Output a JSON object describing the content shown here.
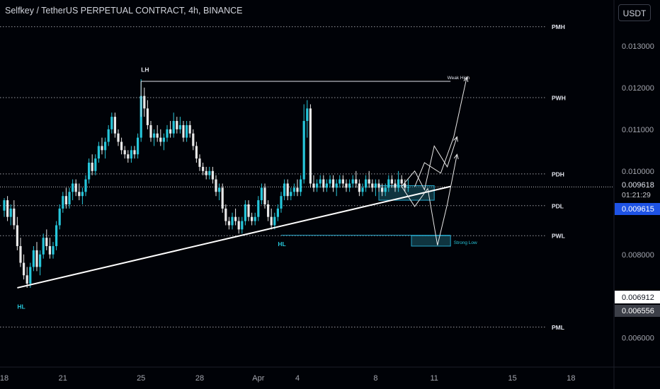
{
  "header": {
    "symbol_title": "Selfkey / TetherUS PERPETUAL CONTRACT, 4h, BINANCE",
    "currency_button": "USDT"
  },
  "colors": {
    "background": "#000207",
    "candle_up": "#26c6da",
    "candle_down": "#e8e8e8",
    "trendline": "#ffffff",
    "grid_text": "#a3a6af",
    "label_box_blue": "#1e53e5",
    "zone_fill": "#1b5e6e",
    "zone_border": "#26a6c9"
  },
  "chart_data": {
    "type": "candlestick",
    "y_axis": {
      "tick_labels": [
        "0.013000",
        "0.012000",
        "0.011000",
        "0.010000",
        "0.008000",
        "0.006000"
      ],
      "tick_values": [
        0.013,
        0.012,
        0.011,
        0.01,
        0.008,
        0.006
      ],
      "ylim": [
        0.0053,
        0.0141
      ],
      "position": "right"
    },
    "x_axis": {
      "tick_labels": [
        "18",
        "21",
        "25",
        "28",
        "Apr",
        "4",
        "8",
        "11",
        "15",
        "18"
      ],
      "tick_index": [
        0,
        18,
        42,
        60,
        78,
        90,
        114,
        132,
        156,
        174
      ]
    },
    "price_labels": {
      "last_price": "0.009618",
      "countdown": "01:21:29",
      "bid_price": "0.009615",
      "low_price": "0.006912",
      "lower_price": "0.006556"
    },
    "levels": [
      {
        "label": "PMH",
        "value": 0.01346
      },
      {
        "label": "PWH",
        "value": 0.01176
      },
      {
        "label": "PDH",
        "value": 0.00993
      },
      {
        "label": "PDL",
        "value": 0.00917
      },
      {
        "label": "PWL",
        "value": 0.00845
      },
      {
        "label": "PML",
        "value": 0.00626
      }
    ],
    "annotations": [
      {
        "text": "LH",
        "x": 42,
        "y": 0.01238
      },
      {
        "text": "Weak High",
        "x": 136,
        "y": 0.0122
      },
      {
        "text": "HL",
        "x": 4,
        "y": 0.0067
      },
      {
        "text": "HL",
        "x": 84,
        "y": 0.0082
      },
      {
        "text": "Strong Low",
        "x": 138,
        "y": 0.00825
      }
    ],
    "trendline": {
      "x": [
        4,
        137
      ],
      "y": [
        0.0072,
        0.00963
      ]
    },
    "high_line": {
      "x": [
        42,
        137
      ],
      "y": [
        0.01215,
        0.01215
      ]
    },
    "low_line": {
      "x": [
        85,
        137
      ],
      "y": [
        0.00846,
        0.00846
      ]
    },
    "zones": [
      {
        "x": [
          115,
          132
        ],
        "y": [
          0.0093,
          0.00965
        ]
      },
      {
        "x": [
          125,
          137
        ],
        "y": [
          0.0082,
          0.00845
        ]
      }
    ],
    "projections": [
      {
        "x": [
          122,
          126,
          129,
          132,
          136,
          139
        ],
        "y": [
          0.00963,
          0.01,
          0.00955,
          0.0106,
          0.0101,
          0.01082
        ]
      },
      {
        "x": [
          122,
          126,
          130,
          133,
          136,
          139
        ],
        "y": [
          0.00963,
          0.00915,
          0.00958,
          0.00822,
          0.0092,
          0.0104
        ]
      },
      {
        "x": [
          126,
          129,
          134,
          138,
          142
        ],
        "y": [
          0.00962,
          0.0102,
          0.00995,
          0.01082,
          0.01225
        ]
      }
    ],
    "ohlc": [
      [
        0.00905,
        0.00935,
        0.0089,
        0.0093
      ],
      [
        0.0093,
        0.0094,
        0.0088,
        0.0089
      ],
      [
        0.0089,
        0.0092,
        0.0087,
        0.0091
      ],
      [
        0.0091,
        0.0093,
        0.0086,
        0.0087
      ],
      [
        0.0087,
        0.0089,
        0.0081,
        0.0082
      ],
      [
        0.0082,
        0.0084,
        0.0077,
        0.0078
      ],
      [
        0.0078,
        0.008,
        0.0074,
        0.0075
      ],
      [
        0.0075,
        0.0077,
        0.0072,
        0.0073
      ],
      [
        0.0073,
        0.0078,
        0.0072,
        0.0077
      ],
      [
        0.0077,
        0.0082,
        0.0076,
        0.0081
      ],
      [
        0.0081,
        0.0083,
        0.0076,
        0.0077
      ],
      [
        0.0077,
        0.0081,
        0.0075,
        0.008
      ],
      [
        0.008,
        0.0085,
        0.0079,
        0.0084
      ],
      [
        0.0084,
        0.0086,
        0.0081,
        0.0082
      ],
      [
        0.0082,
        0.0084,
        0.0079,
        0.008
      ],
      [
        0.008,
        0.0083,
        0.0079,
        0.0082
      ],
      [
        0.0082,
        0.0088,
        0.0081,
        0.0087
      ],
      [
        0.0087,
        0.0092,
        0.0086,
        0.0091
      ],
      [
        0.0091,
        0.0095,
        0.009,
        0.0094
      ],
      [
        0.0094,
        0.0096,
        0.0091,
        0.0092
      ],
      [
        0.0092,
        0.0096,
        0.0091,
        0.0095
      ],
      [
        0.0095,
        0.0098,
        0.0093,
        0.0097
      ],
      [
        0.0097,
        0.0098,
        0.0094,
        0.0095
      ],
      [
        0.0095,
        0.0097,
        0.0093,
        0.0094
      ],
      [
        0.0094,
        0.0096,
        0.0092,
        0.0095
      ],
      [
        0.0095,
        0.0099,
        0.0094,
        0.0098
      ],
      [
        0.0098,
        0.0103,
        0.0097,
        0.0102
      ],
      [
        0.0102,
        0.0104,
        0.0099,
        0.01
      ],
      [
        0.01,
        0.0104,
        0.0099,
        0.0103
      ],
      [
        0.0103,
        0.0107,
        0.0102,
        0.0106
      ],
      [
        0.0106,
        0.0108,
        0.0104,
        0.0105
      ],
      [
        0.0105,
        0.0108,
        0.0103,
        0.0107
      ],
      [
        0.0107,
        0.0111,
        0.0106,
        0.011
      ],
      [
        0.011,
        0.0114,
        0.0109,
        0.0113
      ],
      [
        0.0113,
        0.0114,
        0.0108,
        0.0109
      ],
      [
        0.0109,
        0.011,
        0.0106,
        0.0107
      ],
      [
        0.0107,
        0.0108,
        0.0104,
        0.0105
      ],
      [
        0.0105,
        0.0106,
        0.0103,
        0.0104
      ],
      [
        0.0104,
        0.0105,
        0.0102,
        0.0103
      ],
      [
        0.0103,
        0.0106,
        0.0102,
        0.0105
      ],
      [
        0.0105,
        0.0106,
        0.0103,
        0.0104
      ],
      [
        0.0104,
        0.0109,
        0.0103,
        0.0108
      ],
      [
        0.0108,
        0.0122,
        0.0107,
        0.0118
      ],
      [
        0.0118,
        0.012,
        0.0113,
        0.0115
      ],
      [
        0.0115,
        0.0117,
        0.011,
        0.0111
      ],
      [
        0.0111,
        0.0112,
        0.0107,
        0.0108
      ],
      [
        0.0108,
        0.011,
        0.0106,
        0.0109
      ],
      [
        0.0109,
        0.0111,
        0.0107,
        0.0108
      ],
      [
        0.0108,
        0.011,
        0.0106,
        0.0107
      ],
      [
        0.0107,
        0.0109,
        0.0105,
        0.0108
      ],
      [
        0.0108,
        0.0111,
        0.0107,
        0.011
      ],
      [
        0.011,
        0.0112,
        0.0108,
        0.0109
      ],
      [
        0.0109,
        0.0114,
        0.0108,
        0.0112
      ],
      [
        0.0112,
        0.0113,
        0.0109,
        0.011
      ],
      [
        0.011,
        0.0113,
        0.0109,
        0.0111
      ],
      [
        0.0111,
        0.0112,
        0.0107,
        0.0108
      ],
      [
        0.0108,
        0.0112,
        0.0107,
        0.0111
      ],
      [
        0.0111,
        0.0112,
        0.0108,
        0.0109
      ],
      [
        0.0109,
        0.011,
        0.0105,
        0.0106
      ],
      [
        0.0106,
        0.0107,
        0.0102,
        0.0103
      ],
      [
        0.0103,
        0.0104,
        0.01,
        0.0101
      ],
      [
        0.0101,
        0.0102,
        0.0099,
        0.01
      ],
      [
        0.01,
        0.0101,
        0.0098,
        0.0099
      ],
      [
        0.0099,
        0.0101,
        0.0098,
        0.01
      ],
      [
        0.01,
        0.0101,
        0.0097,
        0.0098
      ],
      [
        0.0098,
        0.0099,
        0.0094,
        0.0095
      ],
      [
        0.0095,
        0.0097,
        0.0093,
        0.0096
      ],
      [
        0.0096,
        0.0097,
        0.009,
        0.0091
      ],
      [
        0.0091,
        0.0092,
        0.0087,
        0.0088
      ],
      [
        0.0088,
        0.0089,
        0.0086,
        0.0087
      ],
      [
        0.0087,
        0.009,
        0.0086,
        0.0089
      ],
      [
        0.0089,
        0.0091,
        0.0087,
        0.0088
      ],
      [
        0.0088,
        0.0089,
        0.0085,
        0.0086
      ],
      [
        0.0086,
        0.0089,
        0.0085,
        0.0088
      ],
      [
        0.0088,
        0.0093,
        0.0087,
        0.0092
      ],
      [
        0.0092,
        0.0093,
        0.0088,
        0.0089
      ],
      [
        0.0089,
        0.009,
        0.0087,
        0.0088
      ],
      [
        0.0088,
        0.009,
        0.0087,
        0.0089
      ],
      [
        0.0089,
        0.0094,
        0.0088,
        0.0093
      ],
      [
        0.0093,
        0.0097,
        0.0092,
        0.0096
      ],
      [
        0.0096,
        0.0097,
        0.0091,
        0.0092
      ],
      [
        0.0092,
        0.0093,
        0.0088,
        0.0089
      ],
      [
        0.0089,
        0.0091,
        0.0086,
        0.0087
      ],
      [
        0.0087,
        0.009,
        0.0086,
        0.0089
      ],
      [
        0.0089,
        0.0092,
        0.0088,
        0.0091
      ],
      [
        0.0091,
        0.0095,
        0.009,
        0.0094
      ],
      [
        0.0094,
        0.0098,
        0.0093,
        0.0097
      ],
      [
        0.0097,
        0.0098,
        0.0093,
        0.0094
      ],
      [
        0.0094,
        0.0096,
        0.0093,
        0.0095
      ],
      [
        0.0095,
        0.0097,
        0.0094,
        0.0096
      ],
      [
        0.0096,
        0.0098,
        0.0094,
        0.0095
      ],
      [
        0.0095,
        0.0099,
        0.0094,
        0.0098
      ],
      [
        0.0098,
        0.0116,
        0.0097,
        0.0112
      ],
      [
        0.0112,
        0.0117,
        0.0108,
        0.0115
      ],
      [
        0.0115,
        0.0116,
        0.0096,
        0.0097
      ],
      [
        0.0097,
        0.0099,
        0.0095,
        0.0096
      ],
      [
        0.0096,
        0.0098,
        0.0095,
        0.0097
      ],
      [
        0.0097,
        0.0099,
        0.0096,
        0.0098
      ],
      [
        0.0098,
        0.0099,
        0.0095,
        0.0096
      ],
      [
        0.0096,
        0.0098,
        0.0095,
        0.0097
      ],
      [
        0.0097,
        0.0099,
        0.0096,
        0.0098
      ],
      [
        0.0098,
        0.0099,
        0.0095,
        0.0096
      ],
      [
        0.0096,
        0.0098,
        0.0094,
        0.0097
      ],
      [
        0.0097,
        0.0099,
        0.0096,
        0.0098
      ],
      [
        0.0098,
        0.0099,
        0.0096,
        0.0097
      ],
      [
        0.0097,
        0.0098,
        0.0095,
        0.0096
      ],
      [
        0.0096,
        0.0098,
        0.0095,
        0.0097
      ],
      [
        0.0097,
        0.0099,
        0.0096,
        0.0098
      ],
      [
        0.0098,
        0.01,
        0.0096,
        0.0097
      ],
      [
        0.0097,
        0.0098,
        0.0094,
        0.0095
      ],
      [
        0.0095,
        0.0097,
        0.0094,
        0.0096
      ],
      [
        0.0096,
        0.0099,
        0.0095,
        0.0098
      ],
      [
        0.0098,
        0.01,
        0.0096,
        0.0097
      ],
      [
        0.0097,
        0.0098,
        0.0095,
        0.0096
      ],
      [
        0.0096,
        0.0098,
        0.0094,
        0.0097
      ],
      [
        0.0097,
        0.0098,
        0.0095,
        0.0096
      ],
      [
        0.0096,
        0.0097,
        0.0094,
        0.0095
      ],
      [
        0.0095,
        0.0097,
        0.0094,
        0.0096
      ],
      [
        0.0096,
        0.0099,
        0.0095,
        0.0098
      ],
      [
        0.0098,
        0.0099,
        0.0096,
        0.0097
      ],
      [
        0.0097,
        0.0098,
        0.0095,
        0.0096
      ],
      [
        0.0096,
        0.01,
        0.0095,
        0.0098
      ],
      [
        0.0098,
        0.0099,
        0.0096,
        0.0097
      ],
      [
        0.0097,
        0.0098,
        0.0095,
        0.0096
      ],
      [
        0.0096,
        0.0098,
        0.0095,
        0.00962
      ]
    ]
  }
}
